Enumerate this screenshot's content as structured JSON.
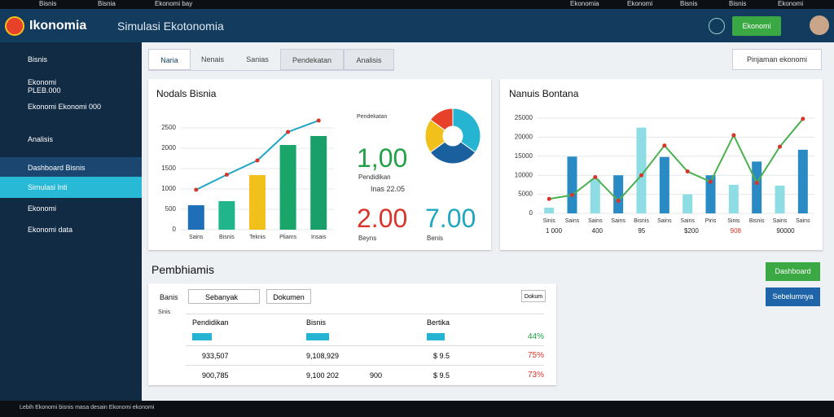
{
  "os_bar": {
    "left": [
      "Bisnis",
      "Bisnia",
      "Ekonomi bay"
    ],
    "right": [
      "Ekonomia",
      "Ekonomi",
      "Bisnis",
      "Bisnis",
      "Ekonomi"
    ]
  },
  "header": {
    "logo": "Ikonomia",
    "title": "Simulasi Ekotonomia",
    "button": "Ekonomi"
  },
  "sidebar": {
    "items": [
      "Bisnis",
      "Ekonomi PLEB.000",
      "Ekonomi Ekonomi 000",
      "Analisis",
      "Dashboard Bisnis",
      "Simulasi Inti",
      "Ekonomi",
      "Ekonomi data"
    ]
  },
  "tabs": [
    "Naria",
    "Nenais",
    "Sanias",
    "Pendekatan",
    "Analisis"
  ],
  "action_button": "Pinjaman ekonomi",
  "left_panel": {
    "title": "Nodals Bisnia",
    "legend": "Pendekatan",
    "stat1": "1,00",
    "stat1_note": "Pendidikan",
    "stat1_sub": "Inas 22.05",
    "stat2": "2.00",
    "stat2_label": "Beyns",
    "stat3": "7.00",
    "stat3_label": "Benis"
  },
  "chart_data": [
    {
      "type": "bar",
      "categories": [
        "Sains",
        "Bisnis",
        "Teknis",
        "Pliams",
        "Insais"
      ],
      "values": [
        600,
        700,
        1340,
        2080,
        2300
      ],
      "colors": [
        "#1f6fb8",
        "#20b58a",
        "#f2c01a",
        "#1aa56b",
        "#19a06a"
      ],
      "line": {
        "values": [
          980,
          1350,
          1700,
          2400,
          2680
        ],
        "color": "#22a5c4"
      },
      "ylim": [
        0,
        2500
      ],
      "yticks": [
        0,
        500,
        1000,
        1500,
        2000,
        2500
      ]
    },
    {
      "type": "pie",
      "values": [
        35,
        30,
        20,
        15
      ],
      "colors": [
        "#25b4d2",
        "#1a5f9e",
        "#f2c01a",
        "#e8412a"
      ]
    },
    {
      "type": "bar",
      "title": "Nanuis Bontana",
      "categories": [
        "Sinis",
        "Sains",
        "Sains",
        "Sains",
        "Bisnis",
        "Sains",
        "Sains",
        "Piris",
        "Sinis",
        "Bisnis",
        "Sains",
        "Sains"
      ],
      "values": [
        1500,
        14900,
        9000,
        10000,
        22500,
        14800,
        5000,
        10000,
        7500,
        13600,
        7300,
        16700
      ],
      "colors": [
        "#8fdde4",
        "#2a8bc4"
      ],
      "line": {
        "values": [
          3800,
          4800,
          9500,
          3300,
          10000,
          17800,
          11000,
          8300,
          20500,
          8000,
          17500,
          24800
        ],
        "color": "#4caf50"
      },
      "ylim": [
        0,
        25000
      ],
      "yticks": [
        0,
        5000,
        10000,
        15000,
        20000,
        25000
      ],
      "footer": [
        "1 000",
        "400",
        "95",
        "$200",
        "908",
        "90000"
      ]
    }
  ],
  "section_title": "Pembhiamis",
  "buttons": [
    "Dashboard",
    "Sebelumnya"
  ],
  "table": {
    "title": "Banis",
    "filter": "Sebanyak",
    "filter2": "Dokumen",
    "button": "Dokum",
    "side": "Sinis",
    "columns": [
      "Pendidikan",
      "Bisnis",
      "Bertika"
    ],
    "rows": [
      [
        "",
        "",
        "",
        "44%"
      ],
      [
        "933,507",
        "9,108,929",
        "$ 9.5",
        "75%"
      ],
      [
        "900,785",
        "9,100 202",
        "$ 9.5",
        "73%"
      ]
    ],
    "extra": "900"
  },
  "taskbar": "Lebih Ekonomi bisnis masa desain Ekonomi ekonomi"
}
